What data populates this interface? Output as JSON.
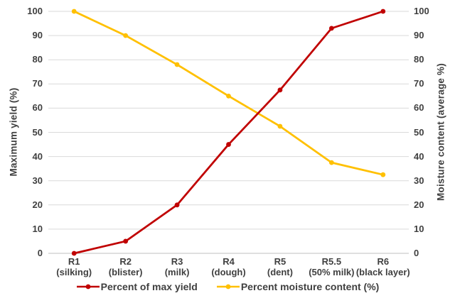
{
  "chart_data": {
    "type": "line",
    "title": "",
    "categories": [
      {
        "stage": "R1",
        "sub": "(silking)"
      },
      {
        "stage": "R2",
        "sub": "(blister)"
      },
      {
        "stage": "R3",
        "sub": "(milk)"
      },
      {
        "stage": "R4",
        "sub": "(dough)"
      },
      {
        "stage": "R5",
        "sub": "(dent)"
      },
      {
        "stage": "R5.5",
        "sub": "(50% milk)"
      },
      {
        "stage": "R6",
        "sub": "(black layer)"
      }
    ],
    "series": [
      {
        "name": "Percent of max yield",
        "color": "#C00000",
        "axis": "left",
        "values": [
          0,
          5,
          20,
          45,
          67.5,
          93,
          100
        ]
      },
      {
        "name": "Percent moisture content (%)",
        "color": "#FFC000",
        "axis": "right",
        "values": [
          100,
          90,
          78,
          65,
          52.5,
          37.5,
          32.5
        ]
      }
    ],
    "left_axis": {
      "label": "Maximum yield (%)",
      "min": 0,
      "max": 100,
      "ticks": [
        0,
        10,
        20,
        30,
        40,
        50,
        60,
        70,
        80,
        90,
        100
      ]
    },
    "right_axis": {
      "label": "Moisture content (average %)",
      "min": 0,
      "max": 100,
      "ticks": [
        0,
        10,
        20,
        30,
        40,
        50,
        60,
        70,
        80,
        90,
        100
      ]
    },
    "grid": "horizontal",
    "legend_position": "bottom",
    "colors": {
      "text": "#404040",
      "gridline": "#D9D9D9",
      "axis_line": "#BFBFBF",
      "background": "#FFFFFF"
    }
  }
}
